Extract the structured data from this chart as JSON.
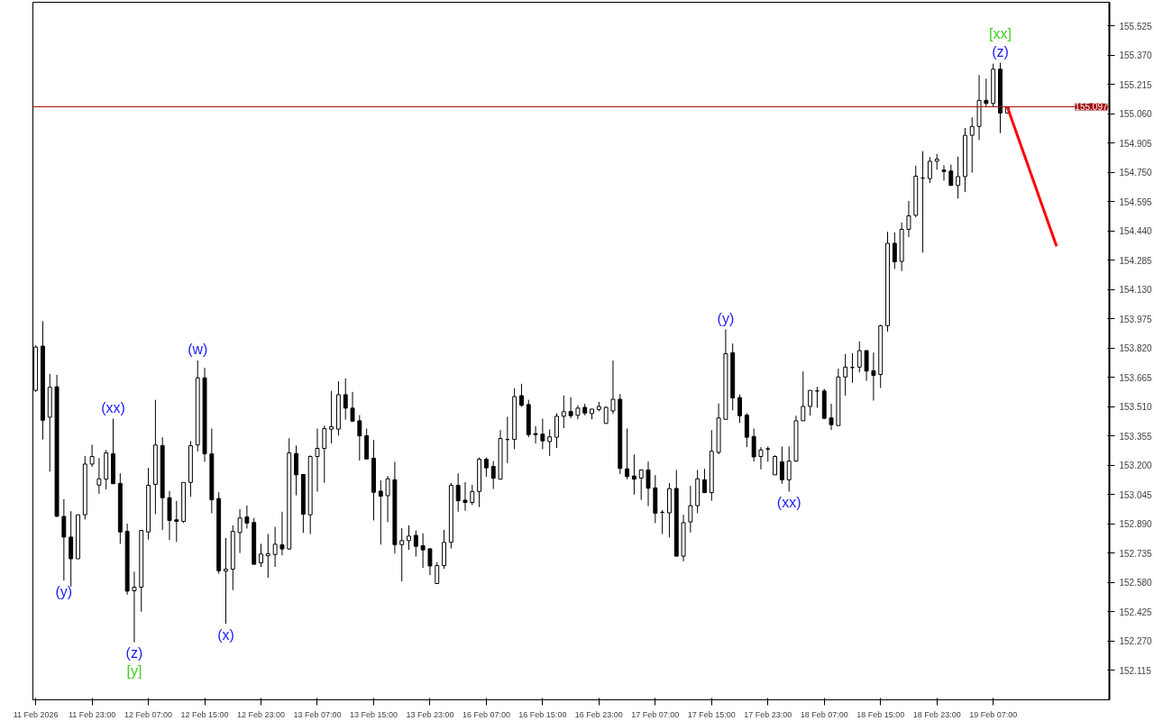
{
  "chart_data": {
    "type": "candlestick",
    "categories": [
      "11 Feb 2026",
      null,
      null,
      null,
      null,
      null,
      null,
      null,
      "11 Feb 23:00",
      null,
      null,
      null,
      null,
      null,
      null,
      null,
      "12 Feb 07:00",
      null,
      null,
      null,
      null,
      null,
      null,
      null,
      "12 Feb 15:00",
      null,
      null,
      null,
      null,
      null,
      null,
      null,
      "12 Feb 23:00",
      null,
      null,
      null,
      null,
      null,
      null,
      null,
      "13 Feb 07:00",
      null,
      null,
      null,
      null,
      null,
      null,
      null,
      "13 Feb 15:00",
      null,
      null,
      null,
      null,
      null,
      null,
      null,
      "13 Feb 23:00",
      null,
      null,
      null,
      null,
      null,
      null,
      null,
      "16 Feb 07:00",
      null,
      null,
      null,
      null,
      null,
      null,
      null,
      "16 Feb 15:00",
      null,
      null,
      null,
      null,
      null,
      null,
      null,
      "16 Feb 23:00",
      null,
      null,
      null,
      null,
      null,
      null,
      null,
      "17 Feb 07:00",
      null,
      null,
      null,
      null,
      null,
      null,
      null,
      "17 Feb 15:00",
      null,
      null,
      null,
      null,
      null,
      null,
      null,
      "17 Feb 23:00",
      null,
      null,
      null,
      null,
      null,
      null,
      null,
      "18 Feb 07:00",
      null,
      null,
      null,
      null,
      null,
      null,
      null,
      "18 Feb 15:00",
      null,
      null,
      null,
      null,
      null,
      null,
      null,
      "18 Feb 23:00",
      null,
      null,
      null,
      null,
      null,
      null,
      null,
      "19 Feb 07:00",
      null,
      null,
      null,
      null,
      null,
      null,
      null,
      null,
      null,
      null,
      null,
      null,
      null,
      null,
      null,
      null
    ],
    "ohlc": [
      [
        153.597,
        153.835,
        153.589,
        153.826
      ],
      [
        153.831,
        153.963,
        153.337,
        153.439
      ],
      [
        153.455,
        153.684,
        153.167,
        153.613
      ],
      [
        153.616,
        153.679,
        152.927,
        152.931
      ],
      [
        152.93,
        153.021,
        152.591,
        152.821
      ],
      [
        152.821,
        152.958,
        152.559,
        152.706
      ],
      [
        152.706,
        152.939,
        152.706,
        152.939
      ],
      [
        152.939,
        153.25,
        152.914,
        153.207
      ],
      [
        153.207,
        153.31,
        153.192,
        153.247
      ],
      [
        153.096,
        153.239,
        153.05,
        153.129
      ],
      [
        153.127,
        153.282,
        153.073,
        153.266
      ],
      [
        153.261,
        153.447,
        153.103,
        153.103
      ],
      [
        153.105,
        153.158,
        152.785,
        152.848
      ],
      [
        152.851,
        152.892,
        152.516,
        152.535
      ],
      [
        152.537,
        152.638,
        152.264,
        152.556
      ],
      [
        152.556,
        152.856,
        152.426,
        152.856
      ],
      [
        152.848,
        153.187,
        152.808,
        153.095
      ],
      [
        153.1,
        153.547,
        152.942,
        153.308
      ],
      [
        153.305,
        153.349,
        152.859,
        153.029
      ],
      [
        153.029,
        153.065,
        152.805,
        152.909
      ],
      [
        152.912,
        153.012,
        152.795,
        152.904
      ],
      [
        152.904,
        153.11,
        152.895,
        153.11
      ],
      [
        153.11,
        153.329,
        153.034,
        153.304
      ],
      [
        153.308,
        153.755,
        153.274,
        153.663
      ],
      [
        153.663,
        153.716,
        153.219,
        153.261
      ],
      [
        153.261,
        153.395,
        152.947,
        153.018
      ],
      [
        153.025,
        153.058,
        152.627,
        152.643
      ],
      [
        152.641,
        152.816,
        152.362,
        152.651
      ],
      [
        152.651,
        152.883,
        152.54,
        152.851
      ],
      [
        152.845,
        152.969,
        152.737,
        152.922
      ],
      [
        152.927,
        152.988,
        152.866,
        152.895
      ],
      [
        152.898,
        152.922,
        152.677,
        152.677
      ],
      [
        152.685,
        152.785,
        152.663,
        152.731
      ],
      [
        152.722,
        152.837,
        152.606,
        152.733
      ],
      [
        152.729,
        152.875,
        152.663,
        152.783
      ],
      [
        152.78,
        152.955,
        152.724,
        152.758
      ],
      [
        152.758,
        153.344,
        152.753,
        153.266
      ],
      [
        153.263,
        153.305,
        153.042,
        153.15
      ],
      [
        153.152,
        153.152,
        152.843,
        152.942
      ],
      [
        152.939,
        153.253,
        152.837,
        153.247
      ],
      [
        153.247,
        153.395,
        153.061,
        153.29
      ],
      [
        153.29,
        153.411,
        153.108,
        153.395
      ],
      [
        153.392,
        153.594,
        153.316,
        153.405
      ],
      [
        153.392,
        153.645,
        153.357,
        153.574
      ],
      [
        153.574,
        153.66,
        153.442,
        153.503
      ],
      [
        153.503,
        153.589,
        153.434,
        153.434
      ],
      [
        153.436,
        153.466,
        153.226,
        153.356
      ],
      [
        153.357,
        153.395,
        153.231,
        153.234
      ],
      [
        153.238,
        153.334,
        152.909,
        153.058
      ],
      [
        153.064,
        153.121,
        152.781,
        153.037
      ],
      [
        153.04,
        153.144,
        152.9,
        153.129
      ],
      [
        153.124,
        153.219,
        152.734,
        152.781
      ],
      [
        152.781,
        152.868,
        152.587,
        152.802
      ],
      [
        152.802,
        152.883,
        152.753,
        152.826
      ],
      [
        152.83,
        152.856,
        152.718,
        152.772
      ],
      [
        152.775,
        152.841,
        152.658,
        152.753
      ],
      [
        152.759,
        152.759,
        152.62,
        152.668
      ],
      [
        152.575,
        152.688,
        152.575,
        152.67
      ],
      [
        152.67,
        152.859,
        152.653,
        152.793
      ],
      [
        152.793,
        153.108,
        152.761,
        153.095
      ],
      [
        153.095,
        153.158,
        152.955,
        153.013
      ],
      [
        153.016,
        153.111,
        152.96,
        153.004
      ],
      [
        153.004,
        153.097,
        152.99,
        153.062
      ],
      [
        153.062,
        153.242,
        152.98,
        153.233
      ],
      [
        153.233,
        153.242,
        153.14,
        153.187
      ],
      [
        153.195,
        153.223,
        153.075,
        153.132
      ],
      [
        153.127,
        153.386,
        153.127,
        153.342
      ],
      [
        153.337,
        153.457,
        153.212,
        153.337
      ],
      [
        153.337,
        153.608,
        153.286,
        153.564
      ],
      [
        153.569,
        153.632,
        153.51,
        153.518
      ],
      [
        153.522,
        153.547,
        153.349,
        153.363
      ],
      [
        153.368,
        153.408,
        153.316,
        153.363
      ],
      [
        153.365,
        153.447,
        153.286,
        153.33
      ],
      [
        153.326,
        153.39,
        153.25,
        153.351
      ],
      [
        153.349,
        153.476,
        153.292,
        153.46
      ],
      [
        153.46,
        153.57,
        153.397,
        153.484
      ],
      [
        153.485,
        153.561,
        153.449,
        153.463
      ],
      [
        153.465,
        153.518,
        153.444,
        153.503
      ],
      [
        153.507,
        153.526,
        153.465,
        153.477
      ],
      [
        153.474,
        153.498,
        153.444,
        153.498
      ],
      [
        153.496,
        153.536,
        153.486,
        153.512
      ],
      [
        153.422,
        153.512,
        153.422,
        153.507
      ],
      [
        153.488,
        153.755,
        153.472,
        153.55
      ],
      [
        153.55,
        153.578,
        153.155,
        153.184
      ],
      [
        153.182,
        153.395,
        153.127,
        153.141
      ],
      [
        153.144,
        153.258,
        153.046,
        153.127
      ],
      [
        153.133,
        153.176,
        153.018,
        153.176
      ],
      [
        153.176,
        153.22,
        152.985,
        153.079
      ],
      [
        153.081,
        153.149,
        152.895,
        152.947
      ],
      [
        152.952,
        152.963,
        152.837,
        152.952
      ],
      [
        152.949,
        153.106,
        152.819,
        153.077
      ],
      [
        153.078,
        153.176,
        152.72,
        152.72
      ],
      [
        152.72,
        152.939,
        152.693,
        152.897
      ],
      [
        152.901,
        153.092,
        152.845,
        152.987
      ],
      [
        152.987,
        153.176,
        152.947,
        153.129
      ],
      [
        153.124,
        153.182,
        153.056,
        153.056
      ],
      [
        153.056,
        153.386,
        153.013,
        153.275
      ],
      [
        153.269,
        153.528,
        153.259,
        153.451
      ],
      [
        153.444,
        153.92,
        153.444,
        153.791
      ],
      [
        153.796,
        153.845,
        153.491,
        153.557
      ],
      [
        153.559,
        153.575,
        153.425,
        153.463
      ],
      [
        153.466,
        153.476,
        153.297,
        153.349
      ],
      [
        153.353,
        153.395,
        153.221,
        153.245
      ],
      [
        153.247,
        153.297,
        153.179,
        153.282
      ],
      [
        153.288,
        153.3,
        153.219,
        153.286
      ],
      [
        153.15,
        153.253,
        153.15,
        153.247
      ],
      [
        153.219,
        153.3,
        153.103,
        153.124
      ],
      [
        153.124,
        153.3,
        153.061,
        153.223
      ],
      [
        153.223,
        153.463,
        153.219,
        153.436
      ],
      [
        153.436,
        153.697,
        153.436,
        153.512
      ],
      [
        153.512,
        153.597,
        153.463,
        153.597
      ],
      [
        153.594,
        153.616,
        153.505,
        153.594
      ],
      [
        153.594,
        153.605,
        153.446,
        153.449
      ],
      [
        153.451,
        153.526,
        153.387,
        153.415
      ],
      [
        153.411,
        153.712,
        153.408,
        153.668
      ],
      [
        153.668,
        153.789,
        153.569,
        153.72
      ],
      [
        153.718,
        153.794,
        153.637,
        153.718
      ],
      [
        153.72,
        153.856,
        153.692,
        153.807
      ],
      [
        153.807,
        153.81,
        153.647,
        153.699
      ],
      [
        153.701,
        153.797,
        153.543,
        153.676
      ],
      [
        153.681,
        153.944,
        153.61,
        153.939
      ],
      [
        153.939,
        154.436,
        153.908,
        154.375
      ],
      [
        154.375,
        154.433,
        154.239,
        154.277
      ],
      [
        154.279,
        154.484,
        154.228,
        154.449
      ],
      [
        154.449,
        154.599,
        154.408,
        154.52
      ],
      [
        154.523,
        154.785,
        154.512,
        154.73
      ],
      [
        154.72,
        154.862,
        154.326,
        154.72
      ],
      [
        154.717,
        154.831,
        154.693,
        154.809
      ],
      [
        154.809,
        154.848,
        154.764,
        154.82
      ],
      [
        154.762,
        154.788,
        154.706,
        154.755
      ],
      [
        154.757,
        154.791,
        154.681,
        154.681
      ],
      [
        154.681,
        154.833,
        154.612,
        154.728
      ],
      [
        154.728,
        154.985,
        154.646,
        154.946
      ],
      [
        154.946,
        155.041,
        154.749,
        154.993
      ],
      [
        154.993,
        155.265,
        154.922,
        155.131
      ],
      [
        155.131,
        155.246,
        155.096,
        155.115
      ],
      [
        155.115,
        155.325,
        155.096,
        155.296
      ],
      [
        155.296,
        155.33,
        154.958,
        155.064
      ],
      [
        155.064,
        155.097,
        155.064,
        155.097
      ],
      null,
      null,
      null,
      null,
      null,
      null,
      null,
      null,
      null,
      null,
      null,
      null,
      null,
      null
    ],
    "series": [
      {
        "type": "line",
        "color": "#ff0000",
        "values": [
          null,
          null,
          null,
          null,
          null,
          null,
          null,
          null,
          null,
          null,
          null,
          null,
          null,
          null,
          null,
          null,
          null,
          null,
          null,
          null,
          null,
          null,
          null,
          null,
          null,
          null,
          null,
          null,
          null,
          null,
          null,
          null,
          null,
          null,
          null,
          null,
          null,
          null,
          null,
          null,
          null,
          null,
          null,
          null,
          null,
          null,
          null,
          null,
          null,
          null,
          null,
          null,
          null,
          null,
          null,
          null,
          null,
          null,
          null,
          null,
          null,
          null,
          null,
          null,
          null,
          null,
          null,
          null,
          null,
          null,
          null,
          null,
          null,
          null,
          null,
          null,
          null,
          null,
          null,
          null,
          null,
          null,
          null,
          null,
          null,
          null,
          null,
          null,
          null,
          null,
          null,
          null,
          null,
          null,
          null,
          null,
          null,
          null,
          null,
          null,
          null,
          null,
          null,
          null,
          null,
          null,
          null,
          null,
          null,
          null,
          null,
          null,
          null,
          null,
          null,
          null,
          null,
          null,
          null,
          null,
          null,
          null,
          null,
          null,
          null,
          null,
          null,
          null,
          null,
          null,
          null,
          null,
          null,
          null,
          null,
          null,
          null,
          null,
          155.097,
          null,
          null,
          null,
          null,
          null,
          null,
          154.359,
          null,
          null,
          null,
          null,
          null,
          null,
          null
        ]
      }
    ],
    "ylim": [
      151.96,
      155.65
    ],
    "yticks": [
      152.115,
      {
        "value": 152.27,
        "label": "152.270"
      },
      152.425,
      {
        "value": 152.58,
        "label": "152.580"
      },
      152.735,
      {
        "value": 152.89,
        "label": "152.890"
      },
      153.045,
      {
        "value": 153.2,
        "label": "153.200"
      },
      153.355,
      {
        "value": 153.51,
        "label": "153.510"
      },
      153.665,
      {
        "value": 153.82,
        "label": "153.820"
      },
      153.975,
      {
        "value": 154.13,
        "label": "154.130"
      },
      154.285,
      {
        "value": 154.44,
        "label": "154.440"
      },
      154.595,
      {
        "value": 154.75,
        "label": "154.750"
      },
      154.905,
      {
        "value": 155.06,
        "label": "155.060"
      },
      155.215,
      {
        "value": 155.37,
        "label": "155.370"
      },
      155.525
    ],
    "ref_lines": [
      {
        "axis": "y",
        "value": 155.097,
        "label": "155.097",
        "color": "#a01010"
      }
    ],
    "annotations": [
      "(y)",
      "(xx)",
      "(z)",
      "[y]",
      "(w)",
      "(x)",
      "(y)",
      "(xx)",
      "(z)",
      "[xx]"
    ],
    "grid": false
  }
}
